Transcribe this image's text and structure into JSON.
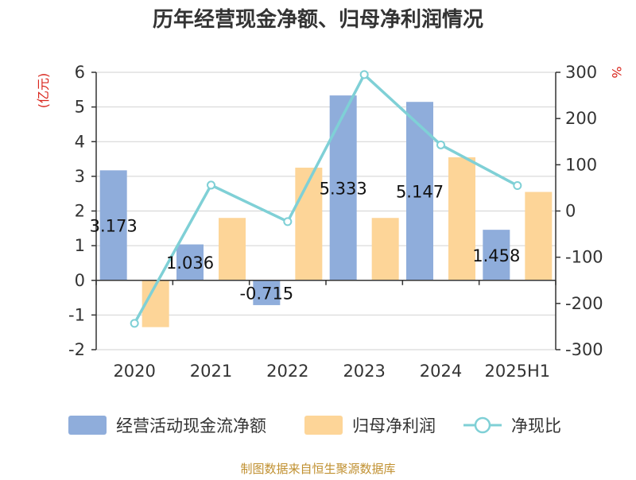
{
  "chart_data": {
    "type": "bar",
    "title": "历年经营现金净额、归母净利润情况",
    "categories": [
      "2020",
      "2021",
      "2022",
      "2023",
      "2024",
      "2025H1"
    ],
    "series": [
      {
        "name": "经营活动现金流净额",
        "type": "bar",
        "axis": "left",
        "color": "#8faddb",
        "values": [
          3.173,
          1.036,
          -0.715,
          5.333,
          5.147,
          1.458
        ],
        "labels": [
          "3.173",
          "1.036",
          "-0.715",
          "5.333",
          "5.147",
          "1.458"
        ]
      },
      {
        "name": "归母净利润",
        "type": "bar",
        "axis": "left",
        "color": "#fdd598",
        "values": [
          -1.35,
          1.8,
          3.25,
          1.8,
          3.55,
          2.55
        ]
      },
      {
        "name": "净现比",
        "type": "line",
        "axis": "right",
        "color": "#7fd0d6",
        "values": [
          -243,
          56,
          -23,
          295,
          143,
          55
        ]
      }
    ],
    "y_left": {
      "unit": "(亿元)",
      "ylim": [
        -2,
        6
      ],
      "ticks": [
        "-2",
        "-1",
        "0",
        "1",
        "2",
        "3",
        "4",
        "5",
        "6"
      ]
    },
    "y_right": {
      "unit": "%",
      "ylim": [
        -300,
        300
      ],
      "ticks": [
        "-300",
        "-200",
        "-100",
        "0",
        "100",
        "200",
        "300"
      ]
    },
    "grid": true,
    "legend": "bottom"
  },
  "footer": "制图数据来自恒生聚源数据库"
}
